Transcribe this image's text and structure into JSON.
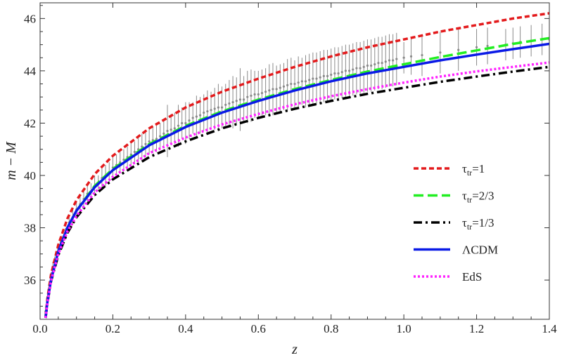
{
  "chart_data": {
    "type": "line",
    "xlabel": "z",
    "ylabel": "m − M",
    "xlim": [
      0.0,
      1.4
    ],
    "ylim": [
      34.5,
      46.6
    ],
    "xticks": [
      "0.0",
      "0.2",
      "0.4",
      "0.6",
      "0.8",
      "1.0",
      "1.2",
      "1.4"
    ],
    "yticks": [
      "36",
      "38",
      "40",
      "42",
      "44",
      "46"
    ],
    "legend_placement": "right-center",
    "grid": false,
    "series": [
      {
        "key": "tau1",
        "label_base": "τ",
        "label_sub": "tr",
        "label_tail": "=1",
        "color": "#e31a1c",
        "dash": "7,4",
        "x": [
          0.015,
          0.02,
          0.03,
          0.05,
          0.075,
          0.1,
          0.15,
          0.2,
          0.3,
          0.4,
          0.5,
          0.6,
          0.7,
          0.8,
          0.9,
          1.0,
          1.1,
          1.2,
          1.3,
          1.4
        ],
        "y": [
          34.6,
          35.27,
          36.2,
          37.35,
          38.35,
          39.05,
          40.05,
          40.75,
          41.8,
          42.6,
          43.2,
          43.7,
          44.15,
          44.55,
          44.9,
          45.2,
          45.5,
          45.75,
          46.0,
          46.2
        ]
      },
      {
        "key": "tau23",
        "label_base": "τ",
        "label_sub": "tr",
        "label_tail": "=2/3",
        "color": "#22ee22",
        "dash": "14,6",
        "x": [
          0.015,
          0.02,
          0.03,
          0.05,
          0.075,
          0.1,
          0.15,
          0.2,
          0.3,
          0.4,
          0.5,
          0.6,
          0.7,
          0.8,
          0.9,
          1.0,
          1.1,
          1.2,
          1.3,
          1.4
        ],
        "y": [
          34.55,
          35.15,
          36.0,
          37.1,
          38.0,
          38.65,
          39.6,
          40.25,
          41.2,
          41.9,
          42.45,
          42.9,
          43.3,
          43.65,
          43.97,
          44.25,
          44.53,
          44.78,
          45.03,
          45.25
        ]
      },
      {
        "key": "tau13",
        "label_base": "τ",
        "label_sub": "tr",
        "label_tail": "=1/3",
        "color": "#000000",
        "dash": "12,5,3,5",
        "x": [
          0.015,
          0.02,
          0.03,
          0.05,
          0.075,
          0.1,
          0.15,
          0.2,
          0.3,
          0.4,
          0.5,
          0.6,
          0.7,
          0.8,
          0.9,
          1.0,
          1.1,
          1.2,
          1.3,
          1.4
        ],
        "y": [
          34.55,
          35.1,
          35.95,
          36.95,
          37.8,
          38.4,
          39.25,
          39.85,
          40.7,
          41.3,
          41.8,
          42.2,
          42.55,
          42.85,
          43.12,
          43.35,
          43.58,
          43.78,
          43.97,
          44.15
        ]
      },
      {
        "key": "lcdm",
        "label_base": "ΛCDM",
        "label_sub": "",
        "label_tail": "",
        "color": "#0a1ae6",
        "dash": "",
        "x": [
          0.015,
          0.02,
          0.03,
          0.05,
          0.075,
          0.1,
          0.15,
          0.2,
          0.3,
          0.4,
          0.5,
          0.6,
          0.7,
          0.8,
          0.9,
          1.0,
          1.1,
          1.2,
          1.3,
          1.4
        ],
        "y": [
          34.55,
          35.15,
          36.0,
          37.1,
          38.0,
          38.65,
          39.55,
          40.2,
          41.15,
          41.85,
          42.4,
          42.85,
          43.25,
          43.6,
          43.9,
          44.15,
          44.4,
          44.62,
          44.83,
          45.03
        ]
      },
      {
        "key": "eds",
        "label_base": "EdS",
        "label_sub": "",
        "label_tail": "",
        "color": "#ff22ff",
        "dash": "3,3",
        "x": [
          0.015,
          0.02,
          0.03,
          0.05,
          0.075,
          0.1,
          0.15,
          0.2,
          0.3,
          0.4,
          0.5,
          0.6,
          0.7,
          0.8,
          0.9,
          1.0,
          1.1,
          1.2,
          1.3,
          1.4
        ],
        "y": [
          34.55,
          35.1,
          35.95,
          37.0,
          37.85,
          38.45,
          39.35,
          39.95,
          40.85,
          41.45,
          41.95,
          42.35,
          42.72,
          43.03,
          43.3,
          43.55,
          43.78,
          43.98,
          44.15,
          44.32
        ]
      }
    ],
    "data_points": {
      "color": "#8a8a8a",
      "z": [
        0.015,
        0.02,
        0.025,
        0.03,
        0.035,
        0.04,
        0.05,
        0.055,
        0.06,
        0.07,
        0.08,
        0.09,
        0.1,
        0.11,
        0.12,
        0.13,
        0.14,
        0.15,
        0.16,
        0.17,
        0.18,
        0.19,
        0.2,
        0.21,
        0.22,
        0.23,
        0.24,
        0.25,
        0.26,
        0.27,
        0.28,
        0.29,
        0.3,
        0.31,
        0.32,
        0.33,
        0.34,
        0.35,
        0.36,
        0.37,
        0.38,
        0.39,
        0.4,
        0.41,
        0.42,
        0.43,
        0.44,
        0.45,
        0.46,
        0.47,
        0.48,
        0.49,
        0.5,
        0.51,
        0.52,
        0.53,
        0.54,
        0.55,
        0.56,
        0.57,
        0.58,
        0.59,
        0.6,
        0.61,
        0.62,
        0.63,
        0.64,
        0.65,
        0.66,
        0.67,
        0.68,
        0.69,
        0.7,
        0.71,
        0.72,
        0.73,
        0.74,
        0.75,
        0.76,
        0.77,
        0.78,
        0.79,
        0.8,
        0.81,
        0.82,
        0.83,
        0.84,
        0.85,
        0.86,
        0.87,
        0.88,
        0.89,
        0.9,
        0.91,
        0.92,
        0.93,
        0.94,
        0.95,
        0.96,
        0.97,
        0.98,
        1.0,
        1.02,
        1.05,
        1.1,
        1.15,
        1.2,
        1.23,
        1.28,
        1.3,
        1.32,
        1.35,
        1.38,
        1.4
      ],
      "mu": [
        34.8,
        35.3,
        35.7,
        36.1,
        36.5,
        36.7,
        37.2,
        37.3,
        37.5,
        37.8,
        38.2,
        38.4,
        38.7,
        38.9,
        39.1,
        39.3,
        39.4,
        39.6,
        39.7,
        39.9,
        40.0,
        40.1,
        40.3,
        40.4,
        40.5,
        40.6,
        40.7,
        40.8,
        40.9,
        41.0,
        41.1,
        41.2,
        41.3,
        41.35,
        41.4,
        41.5,
        41.6,
        41.7,
        41.75,
        41.8,
        41.9,
        42.0,
        42.0,
        42.1,
        42.2,
        42.25,
        42.3,
        42.4,
        42.45,
        42.5,
        42.55,
        42.6,
        42.6,
        42.7,
        42.75,
        42.8,
        42.85,
        42.9,
        42.9,
        43.0,
        43.05,
        43.1,
        43.1,
        43.15,
        43.2,
        43.25,
        43.3,
        43.3,
        43.35,
        43.4,
        43.45,
        43.5,
        43.5,
        43.55,
        43.6,
        43.6,
        43.65,
        43.7,
        43.7,
        43.75,
        43.8,
        43.8,
        43.85,
        43.9,
        43.9,
        43.95,
        44.0,
        44.0,
        44.05,
        44.1,
        44.1,
        44.15,
        44.2,
        44.2,
        44.25,
        44.3,
        44.3,
        44.35,
        44.4,
        44.4,
        44.45,
        44.5,
        44.55,
        44.6,
        44.7,
        44.8,
        44.9,
        44.95,
        45.0,
        45.05,
        45.1,
        45.15,
        45.2,
        45.2
      ],
      "err": [
        0.2,
        0.2,
        0.2,
        0.2,
        0.2,
        0.2,
        0.2,
        0.2,
        0.2,
        0.2,
        0.3,
        0.3,
        0.3,
        0.3,
        0.3,
        0.3,
        0.3,
        0.4,
        0.3,
        0.4,
        0.4,
        0.4,
        0.5,
        0.4,
        0.4,
        0.4,
        0.4,
        0.5,
        0.4,
        0.5,
        0.5,
        0.5,
        0.5,
        0.5,
        0.5,
        0.5,
        0.5,
        1.0,
        0.6,
        0.6,
        0.8,
        0.6,
        0.8,
        0.7,
        0.6,
        0.8,
        0.7,
        0.7,
        0.8,
        0.7,
        0.8,
        0.9,
        0.8,
        0.8,
        0.9,
        1.0,
        0.9,
        1.2,
        0.9,
        1.0,
        1.0,
        0.9,
        0.9,
        0.9,
        0.9,
        1.0,
        1.0,
        0.9,
        0.9,
        0.9,
        1.0,
        1.0,
        0.9,
        1.0,
        0.9,
        1.0,
        1.0,
        1.0,
        1.0,
        1.0,
        1.0,
        1.0,
        1.0,
        1.0,
        1.0,
        1.0,
        1.0,
        1.0,
        1.0,
        1.0,
        1.0,
        1.0,
        1.0,
        1.0,
        1.0,
        1.0,
        1.0,
        1.0,
        1.0,
        1.0,
        1.0,
        0.6,
        0.7,
        0.8,
        0.8,
        0.8,
        0.7,
        0.7,
        0.6,
        0.6,
        0.6,
        0.6,
        0.6,
        0.6
      ]
    }
  }
}
